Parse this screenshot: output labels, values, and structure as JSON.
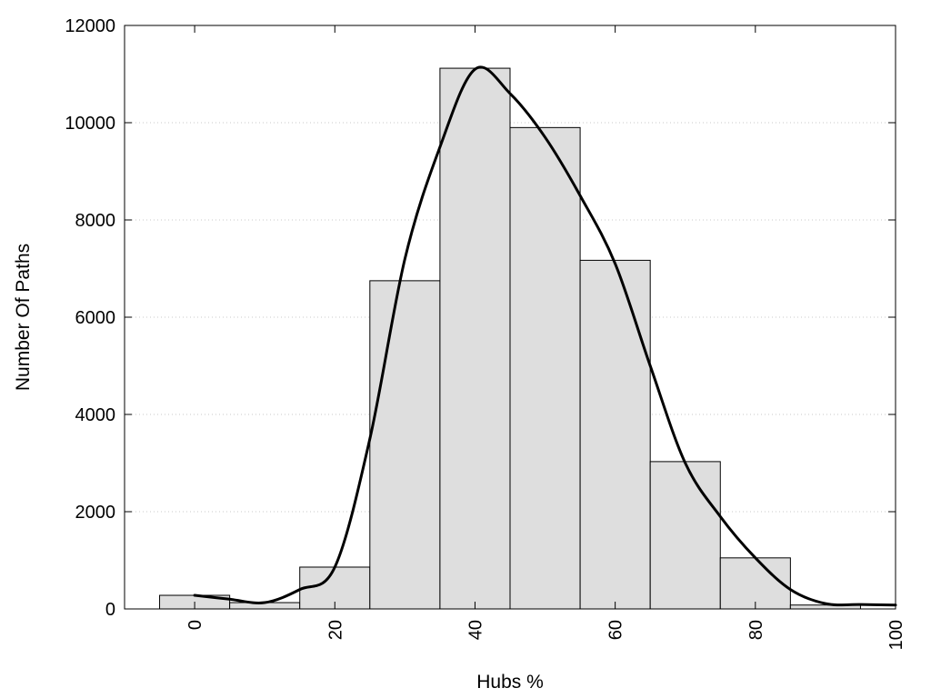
{
  "chart_data": {
    "type": "bar",
    "title": "",
    "xlabel": "Hubs %",
    "ylabel": "Number Of Paths",
    "xlim": [
      -10,
      100
    ],
    "ylim": [
      0,
      12000
    ],
    "x_ticks": [
      0,
      20,
      40,
      60,
      80,
      100
    ],
    "y_ticks": [
      0,
      2000,
      4000,
      6000,
      8000,
      10000,
      12000
    ],
    "grid": "horizontal dotted",
    "legend": "none",
    "bin_width": 10,
    "categories": [
      0,
      10,
      20,
      30,
      40,
      50,
      60,
      70,
      80,
      90
    ],
    "values": [
      280,
      130,
      860,
      6750,
      11120,
      9900,
      7170,
      3030,
      1050,
      80
    ],
    "curve": {
      "type": "smoothed line",
      "x": [
        0,
        5,
        10,
        15,
        20,
        25,
        30,
        35,
        40,
        45,
        50,
        55,
        60,
        65,
        70,
        75,
        80,
        85,
        90,
        95,
        100
      ],
      "y": [
        280,
        200,
        130,
        400,
        860,
        3500,
        7200,
        9500,
        11100,
        10600,
        9700,
        8500,
        7100,
        5000,
        3000,
        1900,
        1050,
        400,
        110,
        90,
        80
      ]
    },
    "colors": {
      "bar_fill": "#dedede",
      "bar_stroke": "#000000",
      "curve": "#000000",
      "grid": "#c8c8c8"
    }
  }
}
